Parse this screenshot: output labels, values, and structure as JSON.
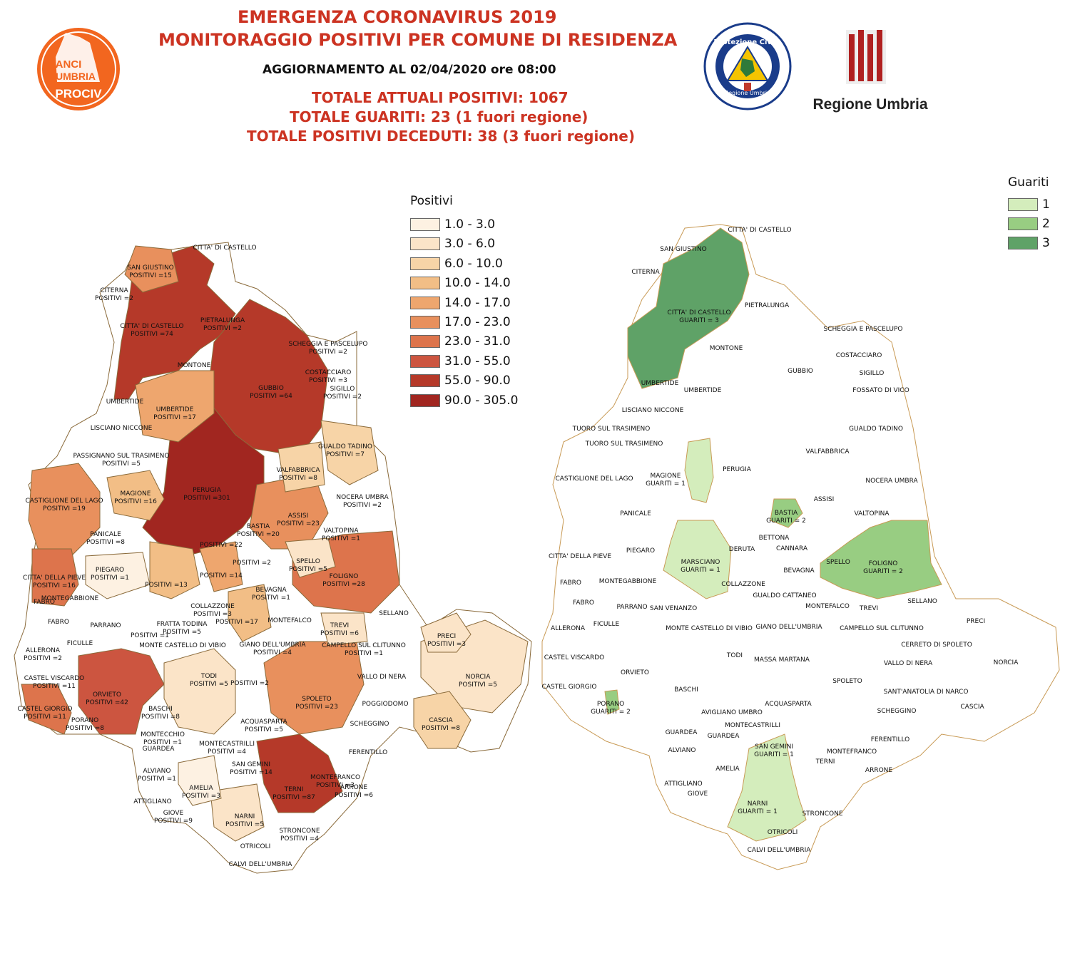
{
  "header": {
    "title1": "EMERGENZA CORONAVIRUS 2019",
    "title2": "MONITORAGGIO POSITIVI PER COMUNE DI RESIDENZA",
    "update": "AGGIORNAMENTO AL 02/04/2020 ore 08:00",
    "tot_positivi": "TOTALE ATTUALI POSITIVI: 1067",
    "tot_guariti": "TOTALE GUARITI:  23 (1 fuori regione)",
    "tot_deceduti": "TOTALE POSITIVI DECEDUTI: 38 (3 fuori regione)"
  },
  "logos": {
    "anci": {
      "line1": "ANCI",
      "line2": "UMBRIA",
      "line3": "PROCIV",
      "color": "#f2661f"
    },
    "protezione": {
      "top": "Protezione Civile",
      "bottom": "Regione Umbria"
    },
    "regione": {
      "name": "Regione Umbria"
    }
  },
  "legend_positivi": {
    "title": "Positivi",
    "items": [
      {
        "label": "1.0 - 3.0",
        "color": "#fdf1e2"
      },
      {
        "label": "3.0 - 6.0",
        "color": "#fbe4c8"
      },
      {
        "label": "6.0 - 10.0",
        "color": "#f7d4a7"
      },
      {
        "label": "10.0 - 14.0",
        "color": "#f2be86"
      },
      {
        "label": "14.0 - 17.0",
        "color": "#eea66e"
      },
      {
        "label": "17.0 - 23.0",
        "color": "#e8905d"
      },
      {
        "label": "23.0 - 31.0",
        "color": "#dd744c"
      },
      {
        "label": "31.0 - 55.0",
        "color": "#cc5540"
      },
      {
        "label": "55.0 - 90.0",
        "color": "#b53929"
      },
      {
        "label": "90.0 - 305.0",
        "color": "#a12620"
      }
    ]
  },
  "legend_guariti": {
    "title": "Guariti",
    "items": [
      {
        "label": "1",
        "color": "#d4edbc"
      },
      {
        "label": "2",
        "color": "#98cd82"
      },
      {
        "label": "3",
        "color": "#5fa267"
      }
    ]
  },
  "map_left_labels": [
    {
      "name": "CITTA' DI CASTELLO",
      "val": ""
    },
    {
      "name": "SAN GIUSTINO",
      "val": "POSITIVI =15"
    },
    {
      "name": "CITERNA",
      "val": "POSITIVI =2"
    },
    {
      "name": "CITTA' DI CASTELLO",
      "val": "POSITIVI =74"
    },
    {
      "name": "PIETRALUNGA",
      "val": "POSITIVI =2"
    },
    {
      "name": "MONTONE",
      "val": ""
    },
    {
      "name": "SCHEGGIA E PASCELUPO",
      "val": "POSITIVI =2"
    },
    {
      "name": "COSTACCIARO",
      "val": "POSITIVI =3"
    },
    {
      "name": "SIGILLO",
      "val": "POSITIVI =2"
    },
    {
      "name": "GUBBIO",
      "val": "POSITIVI =64"
    },
    {
      "name": "UMBERTIDE",
      "val": "POSITIVI =17"
    },
    {
      "name": "UMBERTIDE",
      "val": ""
    },
    {
      "name": "LISCIANO NICCONE",
      "val": ""
    },
    {
      "name": "PASSIGNANO SUL TRASIMENO",
      "val": "POSITIVI =5"
    },
    {
      "name": "GUALDO TADINO",
      "val": "POSITIVI =7"
    },
    {
      "name": "VALFABBRICA",
      "val": "POSITIVI =8"
    },
    {
      "name": "PERUGIA",
      "val": "POSITIVI =301"
    },
    {
      "name": "CASTIGLIONE DEL LAGO",
      "val": "POSITIVI =19"
    },
    {
      "name": "MAGIONE",
      "val": "POSITIVI =16"
    },
    {
      "name": "NOCERA UMBRA",
      "val": "POSITIVI =2"
    },
    {
      "name": "ASSISI",
      "val": "POSITIVI =23"
    },
    {
      "name": "BASTIA",
      "val": "POSITIVI =20"
    },
    {
      "name": "VALTOPINA",
      "val": "POSITIVI =1"
    },
    {
      "name": "PANICALE",
      "val": "POSITIVI =8"
    },
    {
      "name": "",
      "val": "POSITIVI =22"
    },
    {
      "name": "SPELLO",
      "val": "POSITIVI =5"
    },
    {
      "name": "CITTA' DELLA PIEVE",
      "val": "POSITIVI =16"
    },
    {
      "name": "PIEGARO",
      "val": "POSITIVI =1"
    },
    {
      "name": "",
      "val": "POSITIVI =2"
    },
    {
      "name": "",
      "val": "POSITIVI =14"
    },
    {
      "name": "FOLIGNO",
      "val": "POSITIVI =28"
    },
    {
      "name": "BEVAGNA",
      "val": "POSITIVI =1"
    },
    {
      "name": "",
      "val": "POSITIVI =13"
    },
    {
      "name": "MONTEGABBIONE",
      "val": ""
    },
    {
      "name": "COLLAZZONE",
      "val": "POSITIVI =3"
    },
    {
      "name": "FABRO",
      "val": ""
    },
    {
      "name": "SELLANO",
      "val": ""
    },
    {
      "name": "",
      "val": "POSITIVI =17"
    },
    {
      "name": "MONTEFALCO",
      "val": ""
    },
    {
      "name": "TREVI",
      "val": "POSITIVI =6"
    },
    {
      "name": "FABRO",
      "val": ""
    },
    {
      "name": "PARRANO",
      "val": ""
    },
    {
      "name": "",
      "val": "POSITIVI =1"
    },
    {
      "name": "FRATTA TODINA",
      "val": "POSITIVI =5"
    },
    {
      "name": "PRECI",
      "val": "POSITIVI =3"
    },
    {
      "name": "FICULLE",
      "val": ""
    },
    {
      "name": "MONTE CASTELLO DI VIBIO",
      "val": ""
    },
    {
      "name": "GIANO DELL'UMBRIA",
      "val": "POSITIVI =4"
    },
    {
      "name": "CAMPELLO SUL CLITUNNO",
      "val": "POSITIVI =1"
    },
    {
      "name": "ALLERONA",
      "val": "POSITIVI =2"
    },
    {
      "name": "TODI",
      "val": "POSITIVI =5"
    },
    {
      "name": "NORCIA",
      "val": "POSITIVI =5"
    },
    {
      "name": "",
      "val": "POSITIVI =2"
    },
    {
      "name": "VALLO DI NERA",
      "val": ""
    },
    {
      "name": "CASTEL VISCARDO",
      "val": "POSITIVI =11"
    },
    {
      "name": "ORVIETO",
      "val": "POSITIVI =42"
    },
    {
      "name": "SPOLETO",
      "val": "POSITIVI =23"
    },
    {
      "name": "CASTEL GIORGIO",
      "val": "POSITIVI =11"
    },
    {
      "name": "BASCHI",
      "val": "POSITIVI =8"
    },
    {
      "name": "POGGIODOMO",
      "val": ""
    },
    {
      "name": "CASCIA",
      "val": "POSITIVI =8"
    },
    {
      "name": "PORANO",
      "val": "POSITIVI =8"
    },
    {
      "name": "ACQUASPARTA",
      "val": "POSITIVI =5"
    },
    {
      "name": "SCHEGGINO",
      "val": ""
    },
    {
      "name": "MONTECCHIO",
      "val": "POSITIVI =1"
    },
    {
      "name": "GUARDEA",
      "val": ""
    },
    {
      "name": "MONTECASTRILLI",
      "val": "POSITIVI =4"
    },
    {
      "name": "FERENTILLO",
      "val": ""
    },
    {
      "name": "ALVIANO",
      "val": "POSITIVI =1"
    },
    {
      "name": "SAN GEMINI",
      "val": "POSITIVI =14"
    },
    {
      "name": "MONTEFRANCO",
      "val": "POSITIVI =3"
    },
    {
      "name": "TERNI",
      "val": "POSITIVI =87"
    },
    {
      "name": "ARRONE",
      "val": "POSITIVI =6"
    },
    {
      "name": "AMELIA",
      "val": "POSITIVI =3"
    },
    {
      "name": "ATTIGLIANO",
      "val": ""
    },
    {
      "name": "GIOVE",
      "val": "POSITIVI =9"
    },
    {
      "name": "NARNI",
      "val": "POSITIVI =5"
    },
    {
      "name": "STRONCONE",
      "val": "POSITIVI =4"
    },
    {
      "name": "OTRICOLI",
      "val": ""
    },
    {
      "name": "CALVI DELL'UMBRIA",
      "val": ""
    }
  ],
  "map_right_labels": [
    {
      "name": "CITTA' DI CASTELLO",
      "val": ""
    },
    {
      "name": "SAN GIUSTINO",
      "val": ""
    },
    {
      "name": "CITERNA",
      "val": ""
    },
    {
      "name": "CITTA' DI CASTELLO",
      "val": "GUARITI = 3"
    },
    {
      "name": "PIETRALUNGA",
      "val": ""
    },
    {
      "name": "MONTONE",
      "val": ""
    },
    {
      "name": "SCHEGGIA E PASCELUPO",
      "val": ""
    },
    {
      "name": "GUBBIO",
      "val": ""
    },
    {
      "name": "COSTACCIARO",
      "val": ""
    },
    {
      "name": "SIGILLO",
      "val": ""
    },
    {
      "name": "UMBERTIDE",
      "val": ""
    },
    {
      "name": "UMBERTIDE",
      "val": ""
    },
    {
      "name": "FOSSATO DI VICO",
      "val": ""
    },
    {
      "name": "LISCIANO NICCONE",
      "val": ""
    },
    {
      "name": "TUORO SUL TRASIMENO",
      "val": ""
    },
    {
      "name": "GUALDO TADINO",
      "val": ""
    },
    {
      "name": "TUORO SUL TRASIMENO",
      "val": ""
    },
    {
      "name": "VALFABBRICA",
      "val": ""
    },
    {
      "name": "MAGIONE",
      "val": "GUARITI = 1"
    },
    {
      "name": "PERUGIA",
      "val": ""
    },
    {
      "name": "CASTIGLIONE DEL LAGO",
      "val": ""
    },
    {
      "name": "NOCERA UMBRA",
      "val": ""
    },
    {
      "name": "ASSISI",
      "val": ""
    },
    {
      "name": "BASTIA",
      "val": "GUARITI = 2"
    },
    {
      "name": "PANICALE",
      "val": ""
    },
    {
      "name": "VALTOPINA",
      "val": ""
    },
    {
      "name": "BETTONA",
      "val": ""
    },
    {
      "name": "DERUTA",
      "val": ""
    },
    {
      "name": "CANNARA",
      "val": ""
    },
    {
      "name": "SPELLO",
      "val": ""
    },
    {
      "name": "PIEGARO",
      "val": ""
    },
    {
      "name": "CITTA' DELLA PIEVE",
      "val": ""
    },
    {
      "name": "MARSCIANO",
      "val": "GUARITI = 1"
    },
    {
      "name": "FOLIGNO",
      "val": "GUARITI = 2"
    },
    {
      "name": "BEVAGNA",
      "val": ""
    },
    {
      "name": "MONTEGABBIONE",
      "val": ""
    },
    {
      "name": "FABRO",
      "val": ""
    },
    {
      "name": "COLLAZZONE",
      "val": ""
    },
    {
      "name": "GUALDO CATTANEO",
      "val": ""
    },
    {
      "name": "SELLANO",
      "val": ""
    },
    {
      "name": "FABRO",
      "val": ""
    },
    {
      "name": "PARRANO",
      "val": ""
    },
    {
      "name": "SAN VENANZO",
      "val": ""
    },
    {
      "name": "MONTEFALCO",
      "val": ""
    },
    {
      "name": "TREVI",
      "val": ""
    },
    {
      "name": "PRECI",
      "val": ""
    },
    {
      "name": "ALLERONA",
      "val": ""
    },
    {
      "name": "FICULLE",
      "val": ""
    },
    {
      "name": "MONTE CASTELLO DI VIBIO",
      "val": ""
    },
    {
      "name": "GIANO DELL'UMBRIA",
      "val": ""
    },
    {
      "name": "CAMPELLO SUL CLITUNNO",
      "val": ""
    },
    {
      "name": "CERRETO DI SPOLETO",
      "val": ""
    },
    {
      "name": "CASTEL VISCARDO",
      "val": ""
    },
    {
      "name": "TODI",
      "val": ""
    },
    {
      "name": "MASSA MARTANA",
      "val": ""
    },
    {
      "name": "VALLO DI NERA",
      "val": ""
    },
    {
      "name": "NORCIA",
      "val": ""
    },
    {
      "name": "ORVIETO",
      "val": ""
    },
    {
      "name": "SPOLETO",
      "val": ""
    },
    {
      "name": "CASTEL GIORGIO",
      "val": ""
    },
    {
      "name": "BASCHI",
      "val": ""
    },
    {
      "name": "SANT'ANATOLIA DI NARCO",
      "val": ""
    },
    {
      "name": "PORANO",
      "val": "GUARITI = 2"
    },
    {
      "name": "ACQUASPARTA",
      "val": ""
    },
    {
      "name": "CASCIA",
      "val": ""
    },
    {
      "name": "SCHEGGINO",
      "val": ""
    },
    {
      "name": "AVIGLIANO UMBRO",
      "val": ""
    },
    {
      "name": "MONTECASTRILLI",
      "val": ""
    },
    {
      "name": "GUARDEA",
      "val": ""
    },
    {
      "name": "GUARDEA",
      "val": ""
    },
    {
      "name": "FERENTILLO",
      "val": ""
    },
    {
      "name": "SAN GEMINI",
      "val": "GUARITI = 1"
    },
    {
      "name": "MONTEFRANCO",
      "val": ""
    },
    {
      "name": "ALVIANO",
      "val": ""
    },
    {
      "name": "TERNI",
      "val": ""
    },
    {
      "name": "ARRONE",
      "val": ""
    },
    {
      "name": "AMELIA",
      "val": ""
    },
    {
      "name": "ATTIGLIANO",
      "val": ""
    },
    {
      "name": "GIOVE",
      "val": ""
    },
    {
      "name": "NARNI",
      "val": "GUARITI = 1"
    },
    {
      "name": "STRONCONE",
      "val": ""
    },
    {
      "name": "OTRICOLI",
      "val": ""
    },
    {
      "name": "CALVI DELL'UMBRIA",
      "val": ""
    }
  ]
}
